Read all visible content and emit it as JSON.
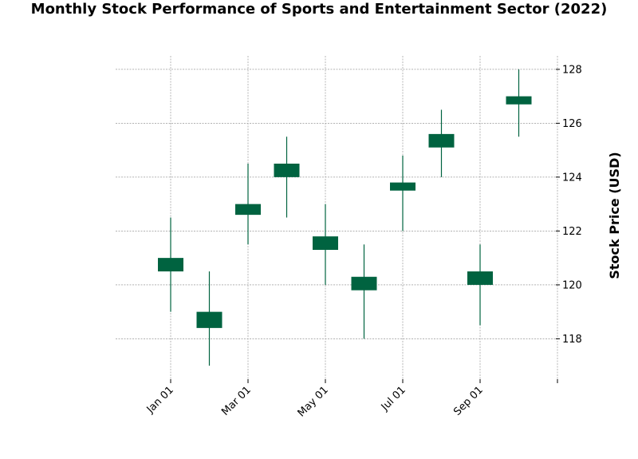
{
  "chart_data": {
    "type": "candlestick",
    "title": "Monthly Stock Performance of Sports and Entertainment Sector (2022)",
    "ylabel": "Stock Price (USD)",
    "xlabel": "",
    "ylim": [
      116.5,
      128.5
    ],
    "y_ticks": [
      118,
      120,
      122,
      124,
      126,
      128
    ],
    "x_ticks": [
      "Jan 01",
      "Mar 01",
      "May 01",
      "Jul 01",
      "Sep 01",
      ""
    ],
    "grid": true,
    "up_color": "#006340",
    "down_color": "#006340",
    "candles": [
      {
        "date": "2022-01",
        "open": 120.5,
        "high": 122.5,
        "low": 119.0,
        "close": 121.0
      },
      {
        "date": "2022-02",
        "open": 119.0,
        "high": 120.5,
        "low": 117.0,
        "close": 118.4
      },
      {
        "date": "2022-03",
        "open": 122.6,
        "high": 124.5,
        "low": 121.5,
        "close": 123.0
      },
      {
        "date": "2022-04",
        "open": 124.0,
        "high": 125.5,
        "low": 122.5,
        "close": 124.5
      },
      {
        "date": "2022-05",
        "open": 121.8,
        "high": 123.0,
        "low": 120.0,
        "close": 121.3
      },
      {
        "date": "2022-06",
        "open": 119.8,
        "high": 121.5,
        "low": 118.0,
        "close": 120.3
      },
      {
        "date": "2022-07",
        "open": 123.5,
        "high": 124.8,
        "low": 122.0,
        "close": 123.8
      },
      {
        "date": "2022-08",
        "open": 125.1,
        "high": 126.5,
        "low": 124.0,
        "close": 125.6
      },
      {
        "date": "2022-09",
        "open": 120.5,
        "high": 121.5,
        "low": 118.5,
        "close": 120.0
      },
      {
        "date": "2022-10",
        "open": 126.7,
        "high": 128.0,
        "low": 125.5,
        "close": 127.0
      }
    ]
  }
}
